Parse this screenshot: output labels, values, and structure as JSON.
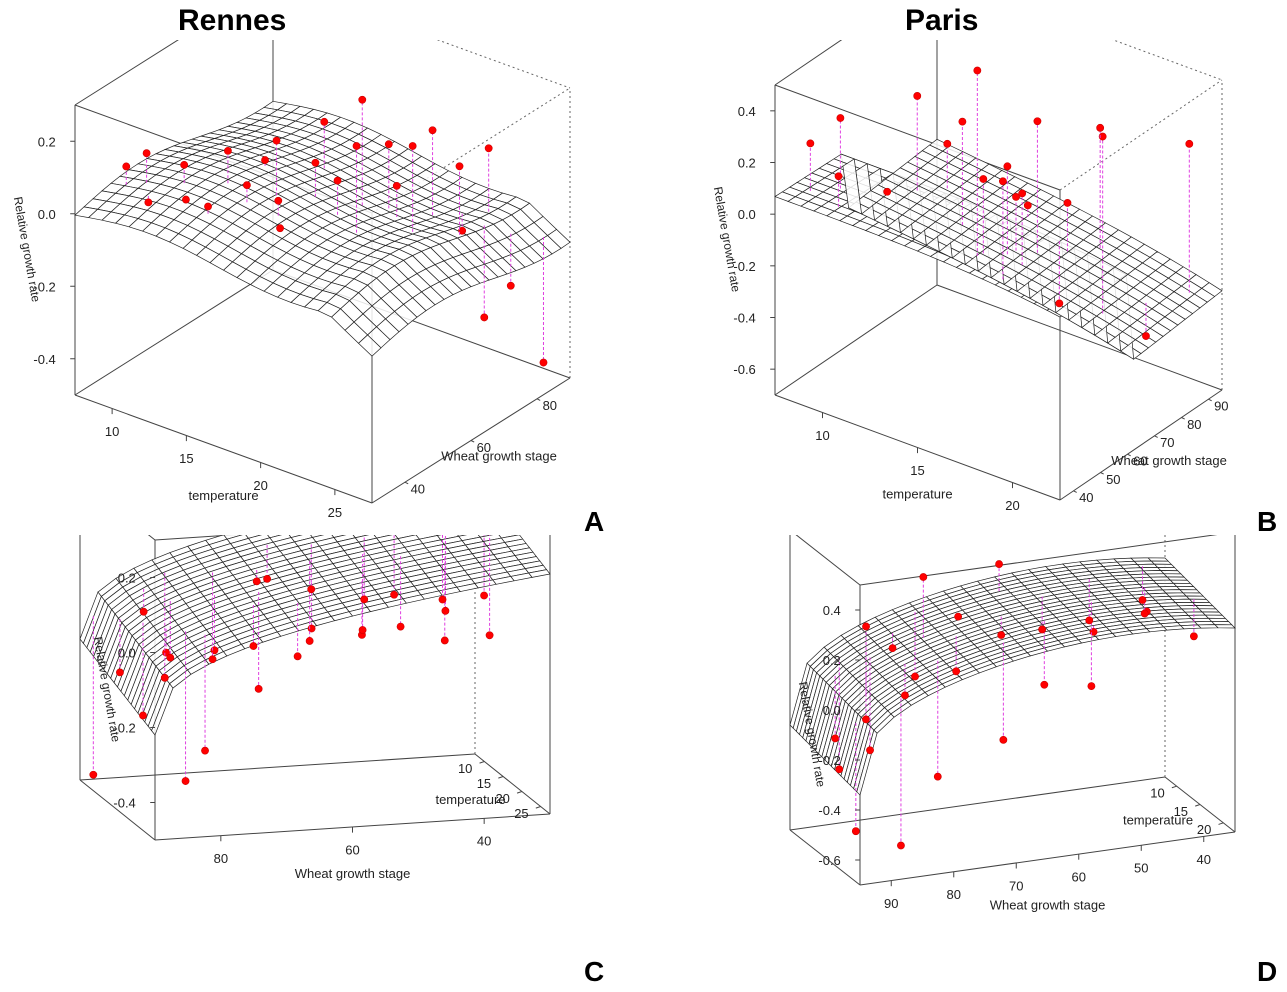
{
  "figure": {
    "column_titles": [
      "Rennes",
      "Paris"
    ],
    "panel_letters": [
      "A",
      "B",
      "C",
      "D"
    ]
  },
  "colors": {
    "points": "#ff0000",
    "stems": "#e040e0",
    "mesh": "#222222"
  },
  "chart_data": [
    {
      "panel": "A",
      "city": "Rennes",
      "type": "scatter",
      "title": "",
      "xlabel": "temperature",
      "ylabel": "Wheat growth stage",
      "zlabel": "Relative growth rate",
      "x_ticks": [
        "10",
        "15",
        "20",
        "25"
      ],
      "y_ticks": [
        "40",
        "60",
        "80"
      ],
      "z_ticks": [
        "0.2",
        "0.0",
        "-0.2",
        "-0.4"
      ],
      "xlim": [
        6,
        27
      ],
      "ylim": [
        28,
        92
      ],
      "zlim": [
        -0.5,
        0.3
      ],
      "surface": "fitted grid surface",
      "points": [
        {
          "x": 7,
          "y": 40,
          "z": 0.08
        },
        {
          "x": 8,
          "y": 42,
          "z": 0.12
        },
        {
          "x": 9,
          "y": 38,
          "z": 0.02
        },
        {
          "x": 10,
          "y": 45,
          "z": 0.1
        },
        {
          "x": 11,
          "y": 41,
          "z": 0.04
        },
        {
          "x": 12,
          "y": 50,
          "z": 0.14
        },
        {
          "x": 13,
          "y": 39,
          "z": 0.06
        },
        {
          "x": 14,
          "y": 47,
          "z": 0.09
        },
        {
          "x": 15,
          "y": 52,
          "z": 0.2
        },
        {
          "x": 16,
          "y": 60,
          "z": 0.11
        },
        {
          "x": 17,
          "y": 44,
          "z": 0.03
        },
        {
          "x": 18,
          "y": 66,
          "z": 0.28
        },
        {
          "x": 19,
          "y": 70,
          "z": 0.15
        },
        {
          "x": 20,
          "y": 55,
          "z": 0.24
        },
        {
          "x": 21,
          "y": 75,
          "z": 0.19
        },
        {
          "x": 22,
          "y": 80,
          "z": -0.1
        },
        {
          "x": 23,
          "y": 84,
          "z": 0.12
        },
        {
          "x": 24,
          "y": 78,
          "z": -0.3
        },
        {
          "x": 25,
          "y": 82,
          "z": -0.22
        },
        {
          "x": 26,
          "y": 88,
          "z": -0.45
        },
        {
          "x": 12,
          "y": 62,
          "z": 0.05
        },
        {
          "x": 14,
          "y": 72,
          "z": 0.13
        },
        {
          "x": 16,
          "y": 48,
          "z": 0.07
        },
        {
          "x": 18,
          "y": 58,
          "z": 0.1
        },
        {
          "x": 20,
          "y": 68,
          "z": 0.06
        },
        {
          "x": 22,
          "y": 64,
          "z": 0.22
        },
        {
          "x": 24,
          "y": 70,
          "z": 0.16
        }
      ]
    },
    {
      "panel": "B",
      "city": "Paris",
      "type": "scatter",
      "title": "",
      "xlabel": "temperature",
      "ylabel": "Wheat growth stage",
      "zlabel": "Relative growth rate",
      "x_ticks": [
        "10",
        "15",
        "20"
      ],
      "y_ticks": [
        "40",
        "50",
        "60",
        "70",
        "80",
        "90"
      ],
      "z_ticks": [
        "0.4",
        "0.2",
        "0.0",
        "-0.2",
        "-0.4",
        "-0.6"
      ],
      "xlim": [
        7,
        24
      ],
      "ylim": [
        33,
        94
      ],
      "zlim": [
        -0.65,
        0.45
      ],
      "surface": "fitted grid surface",
      "points": [
        {
          "x": 8,
          "y": 40,
          "z": 0.22
        },
        {
          "x": 9,
          "y": 45,
          "z": 0.3
        },
        {
          "x": 10,
          "y": 38,
          "z": 0.16
        },
        {
          "x": 11,
          "y": 50,
          "z": 0.05
        },
        {
          "x": 12,
          "y": 55,
          "z": 0.38
        },
        {
          "x": 13,
          "y": 60,
          "z": 0.2
        },
        {
          "x": 14,
          "y": 65,
          "z": 0.45
        },
        {
          "x": 15,
          "y": 70,
          "z": 0.1
        },
        {
          "x": 16,
          "y": 75,
          "z": 0.25
        },
        {
          "x": 17,
          "y": 80,
          "z": -0.05
        },
        {
          "x": 18,
          "y": 42,
          "z": 0.3
        },
        {
          "x": 19,
          "y": 48,
          "z": 0.22
        },
        {
          "x": 20,
          "y": 58,
          "z": -0.2
        },
        {
          "x": 21,
          "y": 68,
          "z": 0.35
        },
        {
          "x": 22,
          "y": 78,
          "z": -0.4
        },
        {
          "x": 23,
          "y": 88,
          "z": 0.24
        },
        {
          "x": 12,
          "y": 72,
          "z": 0.18
        },
        {
          "x": 14,
          "y": 84,
          "z": -0.15
        },
        {
          "x": 16,
          "y": 62,
          "z": 0.12
        },
        {
          "x": 18,
          "y": 86,
          "z": 0.2
        },
        {
          "x": 20,
          "y": 44,
          "z": 0.28
        }
      ]
    },
    {
      "panel": "C",
      "city": "Rennes",
      "type": "scatter",
      "title": "",
      "xlabel": "Wheat growth stage",
      "ylabel": "temperature",
      "zlabel": "Relative growth rate",
      "x_ticks": [
        "80",
        "60",
        "40"
      ],
      "y_ticks": [
        "25",
        "20",
        "15",
        "10"
      ],
      "z_ticks": [
        "0.2",
        "0.0",
        "-0.2",
        "-0.4"
      ],
      "xlim": [
        92,
        28
      ],
      "ylim": [
        27,
        6
      ],
      "zlim": [
        -0.55,
        0.3
      ],
      "surface": "fitted grid surface",
      "points": [
        {
          "x": 91,
          "y": 8,
          "z": -0.52
        },
        {
          "x": 89,
          "y": 12,
          "z": -0.2
        },
        {
          "x": 87,
          "y": 15,
          "z": -0.3
        },
        {
          "x": 85,
          "y": 18,
          "z": -0.1
        },
        {
          "x": 84,
          "y": 10,
          "z": -0.05
        },
        {
          "x": 83,
          "y": 20,
          "z": -0.45
        },
        {
          "x": 82,
          "y": 14,
          "z": -0.15
        },
        {
          "x": 81,
          "y": 22,
          "z": -0.35
        },
        {
          "x": 80,
          "y": 9,
          "z": -0.25
        },
        {
          "x": 76,
          "y": 16,
          "z": -0.12
        },
        {
          "x": 74,
          "y": 12,
          "z": -0.18
        },
        {
          "x": 72,
          "y": 20,
          "z": -0.08
        },
        {
          "x": 70,
          "y": 18,
          "z": -0.22
        },
        {
          "x": 68,
          "y": 14,
          "z": 0.05
        },
        {
          "x": 66,
          "y": 22,
          "z": -0.1
        },
        {
          "x": 64,
          "y": 10,
          "z": 0.02
        },
        {
          "x": 62,
          "y": 19,
          "z": -0.05
        },
        {
          "x": 60,
          "y": 15,
          "z": -0.12
        },
        {
          "x": 58,
          "y": 12,
          "z": 0.0
        },
        {
          "x": 55,
          "y": 21,
          "z": -0.06
        },
        {
          "x": 52,
          "y": 16,
          "z": -0.09
        },
        {
          "x": 50,
          "y": 13,
          "z": -0.03
        },
        {
          "x": 47,
          "y": 18,
          "z": -0.07
        },
        {
          "x": 44,
          "y": 11,
          "z": -0.04
        },
        {
          "x": 41,
          "y": 20,
          "z": -0.1
        },
        {
          "x": 38,
          "y": 15,
          "z": -0.06
        },
        {
          "x": 35,
          "y": 9,
          "z": -0.08
        },
        {
          "x": 32,
          "y": 17,
          "z": -0.12
        },
        {
          "x": 30,
          "y": 12,
          "z": -0.05
        }
      ]
    },
    {
      "panel": "D",
      "city": "Paris",
      "type": "scatter",
      "title": "",
      "xlabel": "Wheat growth stage",
      "ylabel": "temperature",
      "zlabel": "Relative growth rate",
      "x_ticks": [
        "90",
        "80",
        "70",
        "60",
        "50",
        "40"
      ],
      "y_ticks": [
        "20",
        "15",
        "10"
      ],
      "z_ticks": [
        "0.4",
        "0.2",
        "0.0",
        "-0.2",
        "-0.4",
        "-0.6"
      ],
      "xlim": [
        94,
        33
      ],
      "ylim": [
        24,
        7
      ],
      "zlim": [
        -0.7,
        0.45
      ],
      "surface": "fitted grid surface",
      "points": [
        {
          "x": 92,
          "y": 20,
          "z": -0.55
        },
        {
          "x": 90,
          "y": 12,
          "z": -0.3
        },
        {
          "x": 89,
          "y": 18,
          "z": 0.2
        },
        {
          "x": 88,
          "y": 10,
          "z": -0.45
        },
        {
          "x": 87,
          "y": 15,
          "z": -0.2
        },
        {
          "x": 86,
          "y": 22,
          "z": -0.6
        },
        {
          "x": 85,
          "y": 13,
          "z": -0.35
        },
        {
          "x": 82,
          "y": 17,
          "z": -0.1
        },
        {
          "x": 80,
          "y": 11,
          "z": 0.0
        },
        {
          "x": 78,
          "y": 19,
          "z": -0.4
        },
        {
          "x": 77,
          "y": 14,
          "z": 0.3
        },
        {
          "x": 75,
          "y": 9,
          "z": -0.15
        },
        {
          "x": 73,
          "y": 16,
          "z": -0.05
        },
        {
          "x": 70,
          "y": 12,
          "z": 0.1
        },
        {
          "x": 68,
          "y": 20,
          "z": -0.28
        },
        {
          "x": 65,
          "y": 15,
          "z": 0.05
        },
        {
          "x": 62,
          "y": 10,
          "z": 0.25
        },
        {
          "x": 60,
          "y": 18,
          "z": -0.12
        },
        {
          "x": 57,
          "y": 13,
          "z": 0.02
        },
        {
          "x": 54,
          "y": 21,
          "z": 0.1
        },
        {
          "x": 51,
          "y": 16,
          "z": -0.18
        },
        {
          "x": 48,
          "y": 11,
          "z": 0.0
        },
        {
          "x": 44,
          "y": 19,
          "z": 0.12
        },
        {
          "x": 41,
          "y": 14,
          "z": 0.04
        },
        {
          "x": 38,
          "y": 9,
          "z": 0.02
        },
        {
          "x": 35,
          "y": 17,
          "z": -0.03
        }
      ]
    }
  ]
}
